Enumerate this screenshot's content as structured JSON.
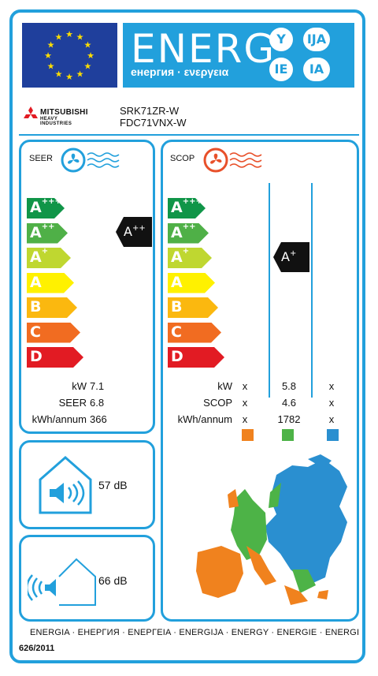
{
  "header": {
    "energ_word": "ENERG",
    "energ_sub": "енергия · ενεργεια",
    "languages": [
      "Y",
      "IJA",
      "IE",
      "IA"
    ]
  },
  "brand": {
    "name": "MITSUBISHI",
    "subtitle": "HEAVY INDUSTRIES",
    "models": [
      "SRK71ZR-W",
      "FDC71VNX-W"
    ]
  },
  "seer": {
    "title": "SEER",
    "scale": [
      "A+++",
      "A++",
      "A+",
      "A",
      "B",
      "C",
      "D"
    ],
    "rating": "A++",
    "rows": [
      {
        "label": "kW",
        "value": "7.1"
      },
      {
        "label": "SEER",
        "value": "6.8"
      },
      {
        "label": "kWh/annum",
        "value": "366"
      }
    ]
  },
  "scop": {
    "title": "SCOP",
    "scale": [
      "A+++",
      "A++",
      "A+",
      "A",
      "B",
      "C",
      "D"
    ],
    "rating": "A+",
    "rows": [
      {
        "label": "kW",
        "values": [
          "x",
          "5.8",
          "x"
        ]
      },
      {
        "label": "SCOP",
        "values": [
          "x",
          "4.6",
          "x"
        ]
      },
      {
        "label": "kWh/annum",
        "values": [
          "x",
          "1782",
          "x"
        ]
      }
    ],
    "zones": [
      "#f0821e",
      "#4db347",
      "#2a8fd0"
    ]
  },
  "noise": {
    "indoor_db": "57 dB",
    "outdoor_db": "66 dB"
  },
  "footer": {
    "energy_words": "ENERGIA · ЕНЕРГИЯ · ΕΝΕΡΓΕΙΑ · ENERGIJA · ENERGY · ENERGIE · ENERGI",
    "regulation": "626/2011"
  },
  "colors": {
    "frame": "#22a0dc",
    "eu_flag": "#1f3f9c",
    "stars": "#ffde00",
    "scale": [
      "#109548",
      "#4fb047",
      "#bfd730",
      "#fff100",
      "#fbb80f",
      "#f16c21",
      "#e21b23"
    ]
  }
}
